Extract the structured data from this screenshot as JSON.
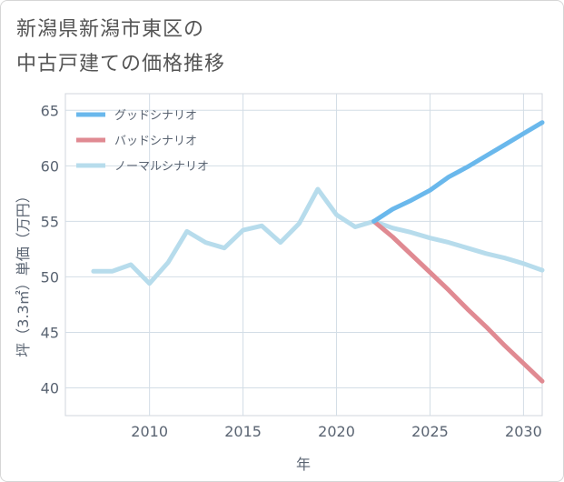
{
  "title_line1": "新潟県新潟市東区の",
  "title_line2": "中古戸建ての価格推移",
  "chart_data": {
    "type": "line",
    "xlabel": "年",
    "ylabel": "坪（3.3㎡）単価（万円）",
    "xlim": [
      2005.5,
      2031
    ],
    "ylim": [
      37.5,
      66.5
    ],
    "x_ticks": [
      2010,
      2015,
      2020,
      2025,
      2030
    ],
    "y_ticks": [
      40,
      45,
      50,
      55,
      60,
      65
    ],
    "grid": true,
    "legend_position": "top-left",
    "series": [
      {
        "name": "グッドシナリオ",
        "color": "#6ab8ec",
        "x": [
          2022,
          2023,
          2024,
          2025,
          2026,
          2027,
          2028,
          2029,
          2030,
          2031
        ],
        "y": [
          55.0,
          56.1,
          56.9,
          57.8,
          59.0,
          59.9,
          60.9,
          61.9,
          62.9,
          63.9
        ]
      },
      {
        "name": "バッドシナリオ",
        "color": "#e08a92",
        "x": [
          2022,
          2023,
          2024,
          2025,
          2026,
          2027,
          2028,
          2029,
          2030,
          2031
        ],
        "y": [
          55.0,
          53.6,
          52.0,
          50.4,
          48.8,
          47.1,
          45.5,
          43.8,
          42.2,
          40.6
        ]
      },
      {
        "name": "ノーマルシナリオ",
        "color": "#b7dcec",
        "x": [
          2007,
          2008,
          2009,
          2010,
          2011,
          2012,
          2013,
          2014,
          2015,
          2016,
          2017,
          2018,
          2019,
          2020,
          2021,
          2022,
          2023,
          2024,
          2025,
          2026,
          2027,
          2028,
          2029,
          2030,
          2031
        ],
        "y": [
          50.5,
          50.5,
          51.1,
          49.4,
          51.3,
          54.1,
          53.1,
          52.6,
          54.2,
          54.6,
          53.1,
          54.8,
          57.9,
          55.6,
          54.5,
          55.0,
          54.4,
          54.0,
          53.5,
          53.1,
          52.6,
          52.1,
          51.7,
          51.2,
          50.6
        ]
      }
    ]
  }
}
